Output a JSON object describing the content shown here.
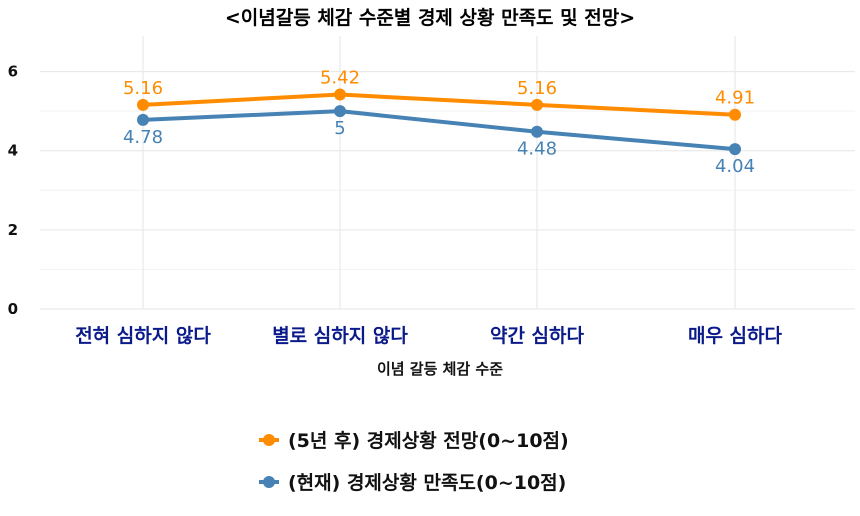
{
  "chart_data": {
    "type": "line",
    "title": "<이념갈등 체감 수준별 경제 상황 만족도 및 전망>",
    "xlabel": "이념 갈등 체감 수준",
    "ylabel": "",
    "categories": [
      "전혀 심하지 않다",
      "별로 심하지 않다",
      "약간 심하다",
      "매우 심하다"
    ],
    "ylim": [
      0,
      6.9
    ],
    "yticks": [
      0,
      2,
      4,
      6
    ],
    "grid": true,
    "legend_position": "bottom",
    "series": [
      {
        "name": "(5년 후) 경제상황 전망(0~10점)",
        "color": "#ff8c00",
        "values": [
          5.16,
          5.42,
          5.16,
          4.91
        ],
        "labels": [
          "5.16",
          "5.42",
          "5.16",
          "4.91"
        ],
        "label_position": "above"
      },
      {
        "name": "(현재) 경제상황 만족도(0~10점)",
        "color": "#4682b4",
        "values": [
          4.78,
          5,
          4.48,
          4.04
        ],
        "labels": [
          "4.78",
          "5",
          "4.48",
          "4.04"
        ],
        "label_position": "below"
      }
    ]
  }
}
